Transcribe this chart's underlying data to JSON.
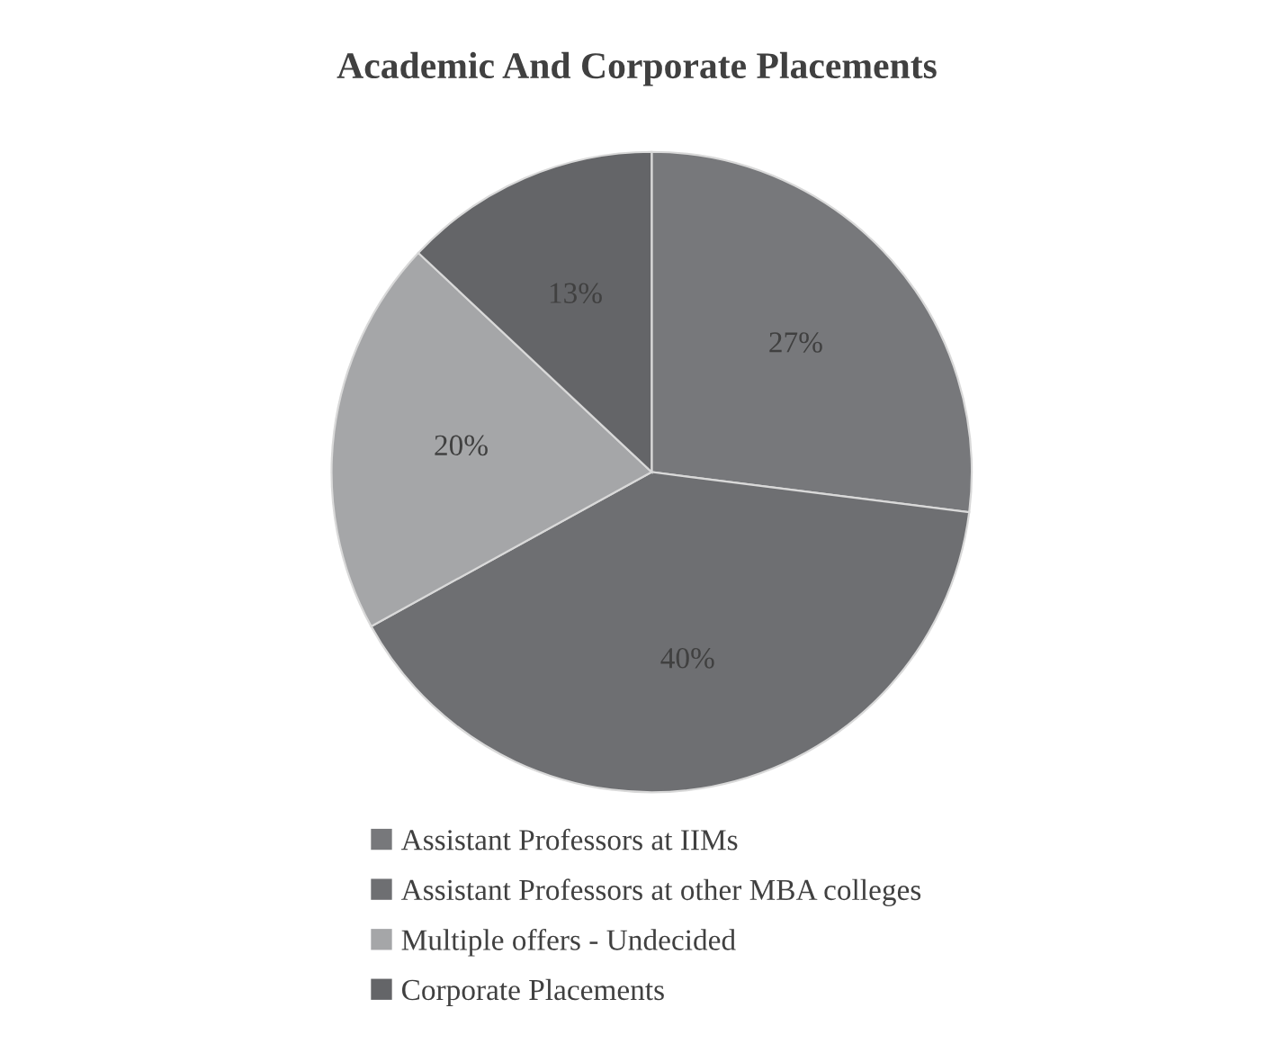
{
  "chart_data": {
    "type": "pie",
    "title": "Academic And Corporate Placements",
    "categories": [
      "Assistant Professors at IIMs",
      "Assistant Professors at other MBA colleges",
      "Multiple offers - Undecided",
      "Corporate Placements"
    ],
    "values": [
      27,
      40,
      20,
      13
    ],
    "value_labels": [
      "27%",
      "40%",
      "20%",
      "13%"
    ],
    "colors": [
      "#77787b",
      "#6e6f72",
      "#a5a6a8",
      "#646568"
    ],
    "legend": "bottom"
  }
}
